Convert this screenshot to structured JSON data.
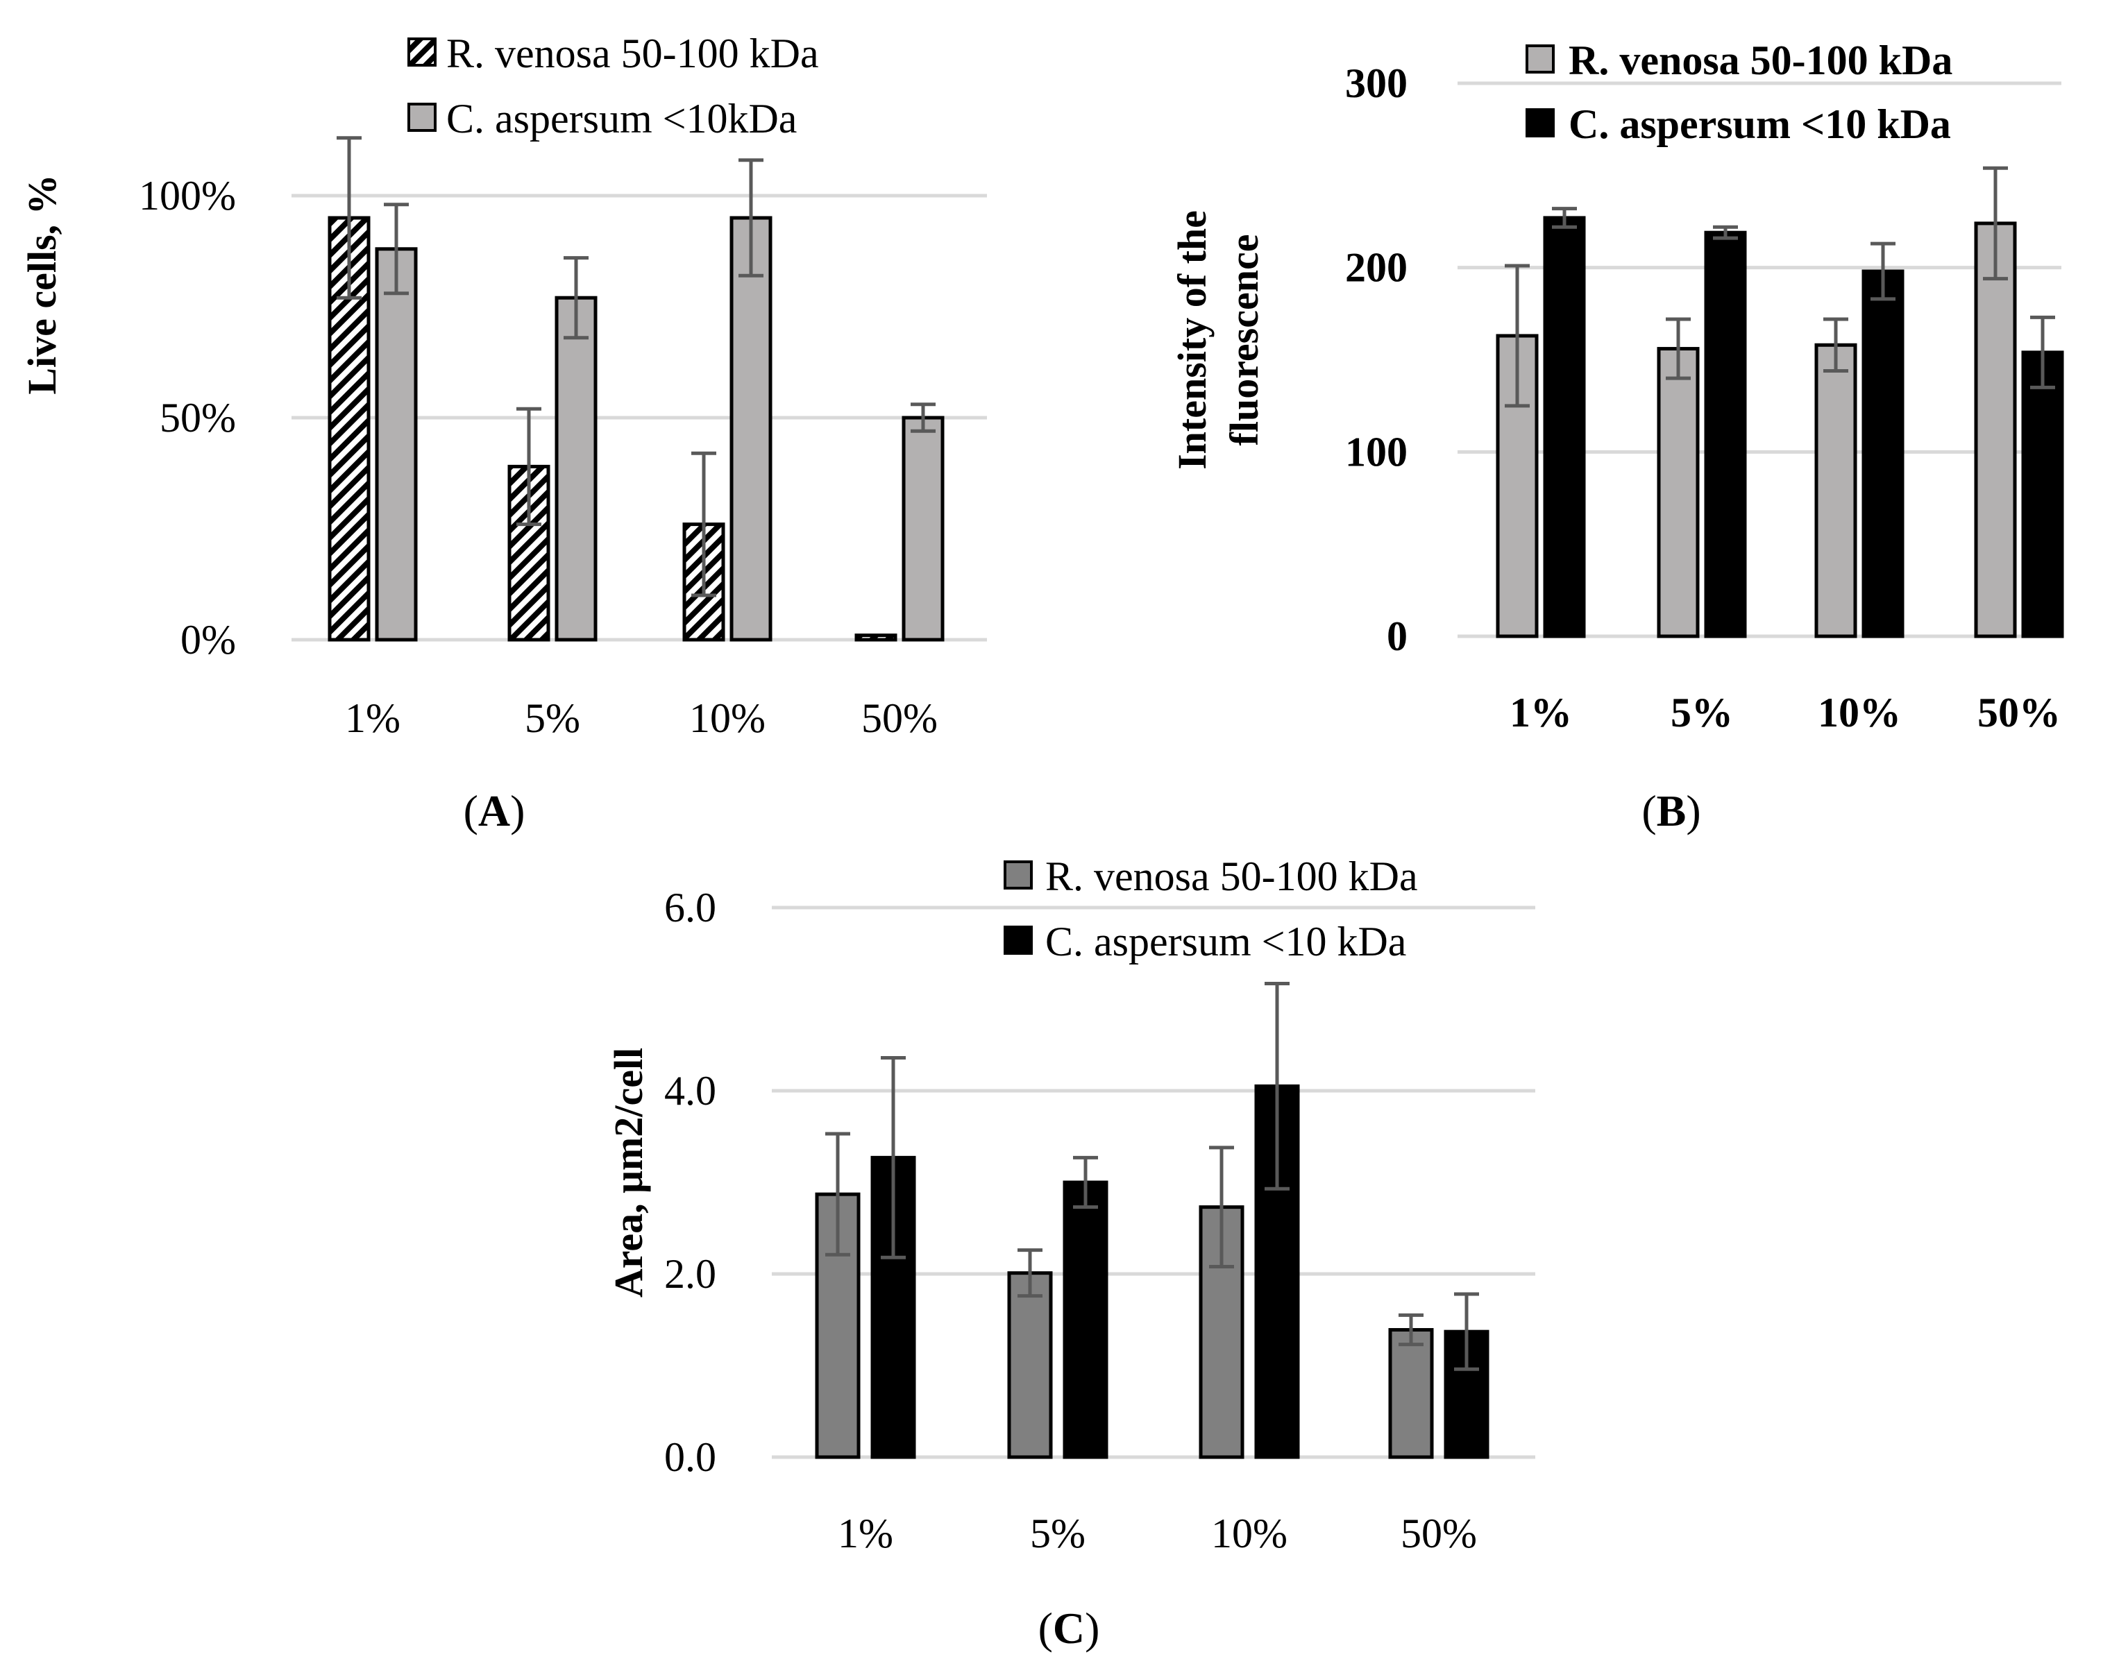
{
  "colors": {
    "light_gray": "#b3b1b1",
    "mid_gray": "#808080",
    "black": "#000000",
    "grid": "#d9d9d9",
    "error_bar": "#595959",
    "hatch_fg": "#000000",
    "hatch_bg": "#ffffff"
  },
  "chart_data": [
    {
      "type": "bar",
      "panel_label": "(A)",
      "panel_letter": "A",
      "ylabel": "Live cells, %",
      "xlabel": "",
      "categories": [
        "1%",
        "5%",
        "10%",
        "50%"
      ],
      "ylim": [
        0,
        1
      ],
      "yticks": [
        {
          "value": 0,
          "label": "0%"
        },
        {
          "value": 0.5,
          "label": "50%"
        },
        {
          "value": 1,
          "label": "100%"
        }
      ],
      "grid": true,
      "legend_position": "top-center",
      "series": [
        {
          "name": "R. venosa 50-100 kDa",
          "fill": "hatch",
          "values": [
            0.95,
            0.39,
            0.26,
            0.01
          ],
          "errors": [
            0.18,
            0.13,
            0.16,
            0.0
          ]
        },
        {
          "name": "C. aspersum <10kDa",
          "fill": "light_gray",
          "values": [
            0.88,
            0.77,
            0.95,
            0.5
          ],
          "errors": [
            0.1,
            0.09,
            0.13,
            0.03
          ]
        }
      ]
    },
    {
      "type": "bar",
      "panel_label": "(B)",
      "panel_letter": "B",
      "ylabel": "Intensity of the fluorescence",
      "ylabel_lines": [
        "Intensity of the",
        "fluorescence"
      ],
      "xlabel": "",
      "categories": [
        "1%",
        "5%",
        "10%",
        "50%"
      ],
      "ylim": [
        0,
        300
      ],
      "yticks": [
        {
          "value": 0,
          "label": "0"
        },
        {
          "value": 100,
          "label": "100"
        },
        {
          "value": 200,
          "label": "200"
        },
        {
          "value": 300,
          "label": "300"
        }
      ],
      "grid": true,
      "bold_labels": true,
      "legend_position": "top-right",
      "series": [
        {
          "name": "R. venosa 50-100 kDa",
          "fill": "light_gray",
          "values": [
            163,
            156,
            158,
            224
          ],
          "errors": [
            38,
            16,
            14,
            30
          ]
        },
        {
          "name": "C. aspersum <10 kDa",
          "fill": "black",
          "values": [
            227,
            219,
            198,
            154
          ],
          "errors": [
            5,
            3,
            15,
            19
          ]
        }
      ]
    },
    {
      "type": "bar",
      "panel_label": "(C)",
      "panel_letter": "C",
      "ylabel": "Area, μm2/cell",
      "xlabel": "",
      "categories": [
        "1%",
        "5%",
        "10%",
        "50%"
      ],
      "ylim": [
        0,
        6
      ],
      "yticks": [
        {
          "value": 0,
          "label": "0.0"
        },
        {
          "value": 2,
          "label": "2.0"
        },
        {
          "value": 4,
          "label": "4.0"
        },
        {
          "value": 6,
          "label": "6.0"
        }
      ],
      "grid": true,
      "legend_position": "top-right",
      "series": [
        {
          "name": "R. venosa 50-100 kDa",
          "fill": "mid_gray",
          "values": [
            2.87,
            2.01,
            2.73,
            1.39
          ],
          "errors": [
            0.66,
            0.25,
            0.65,
            0.16
          ]
        },
        {
          "name": "C. aspersum <10 kDa",
          "fill": "black",
          "values": [
            3.27,
            3.0,
            4.05,
            1.37
          ],
          "errors": [
            1.09,
            0.27,
            1.12,
            0.41
          ]
        }
      ]
    }
  ]
}
